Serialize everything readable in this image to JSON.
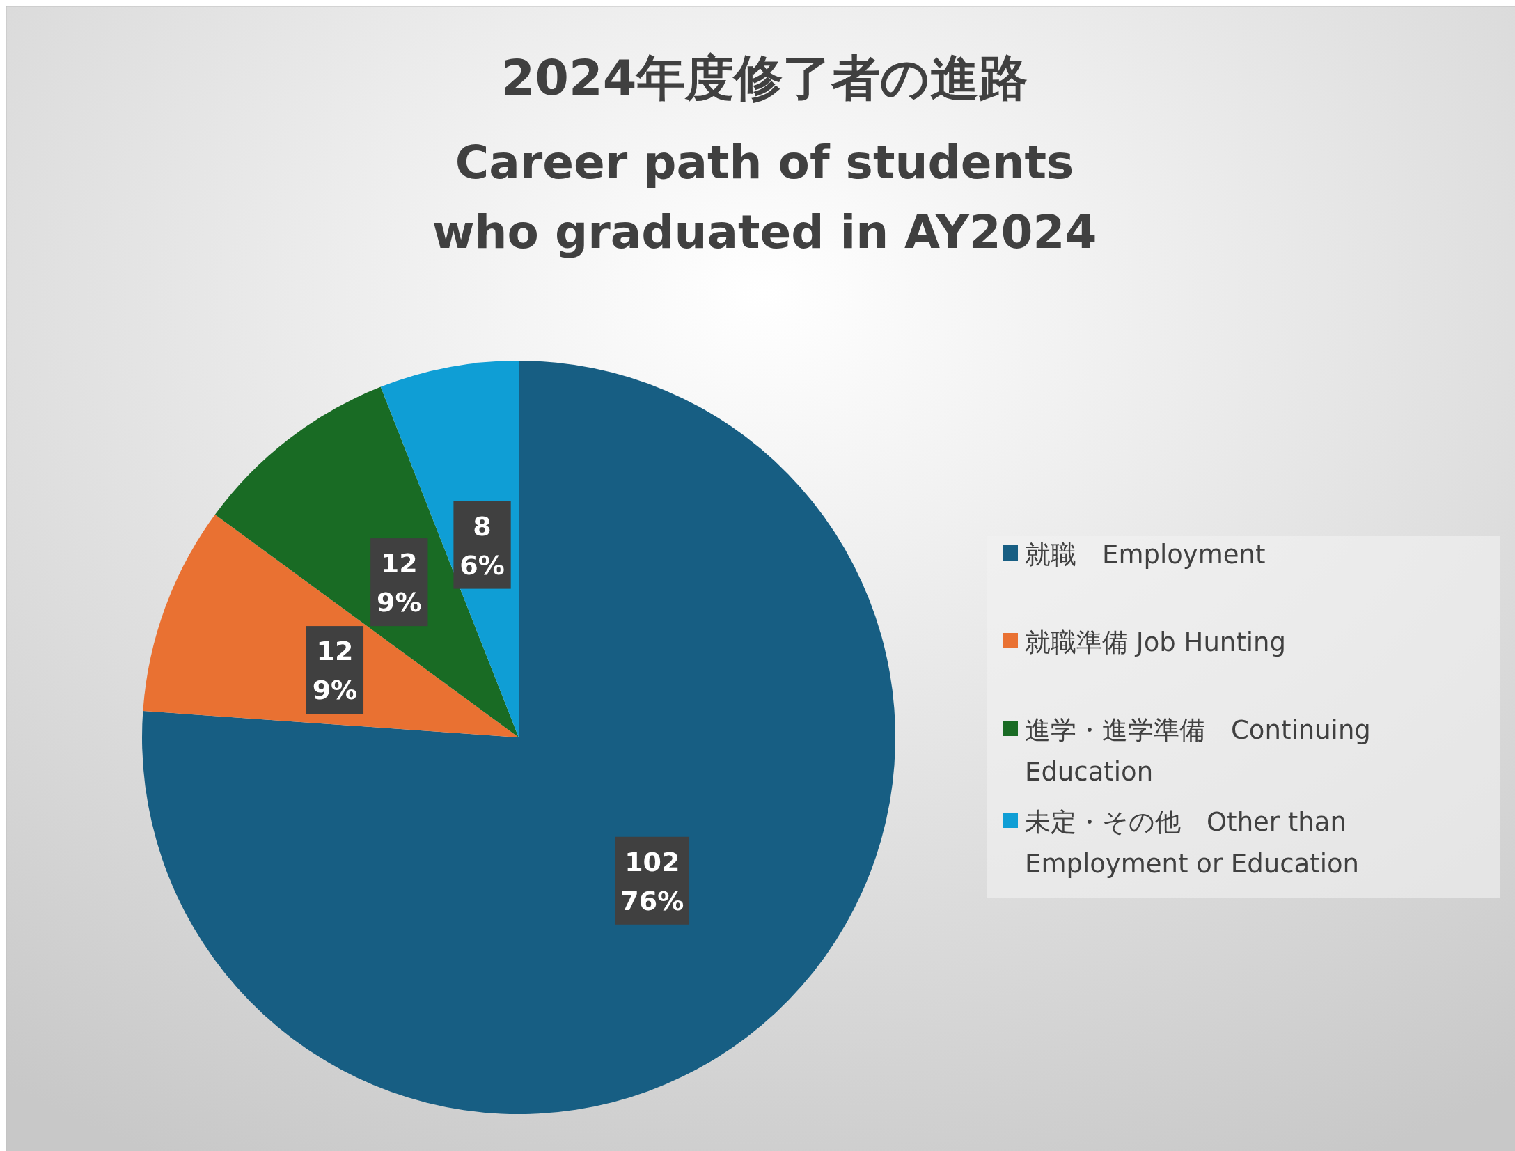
{
  "chart_data": {
    "type": "pie",
    "title": "2024年度修了者の進路",
    "subtitle": "Career path of students\nwho graduated in AY2024",
    "categories": [
      "就職　Employment",
      "就職準備 Job Hunting",
      "進学・進学準備　Continuing Education",
      "未定・その他　Other than Employment or Education"
    ],
    "values": [
      102,
      12,
      12,
      8
    ],
    "colors": [
      "#175e83",
      "#e97132",
      "#196b24",
      "#0f9ed5"
    ],
    "value_labels": [
      "102\n76%",
      "12\n9%",
      "12\n9%",
      "8\n6%"
    ],
    "legend": "right"
  }
}
